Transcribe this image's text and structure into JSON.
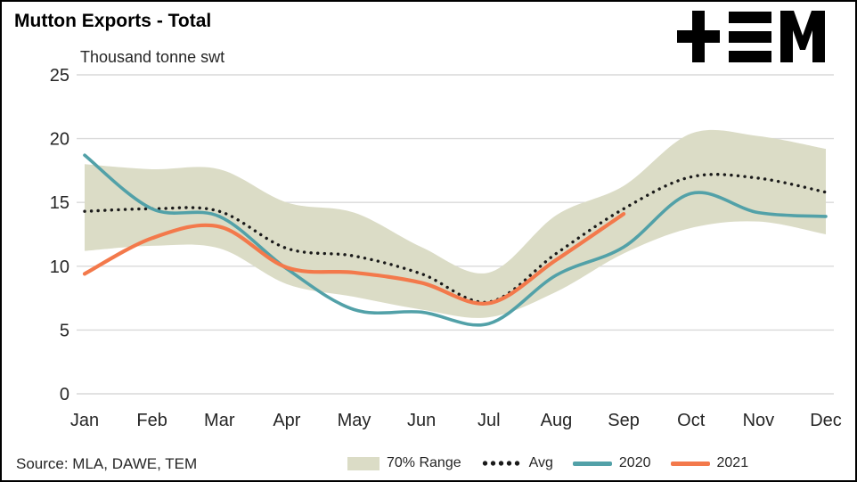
{
  "header": {
    "title": "Mutton Exports - Total",
    "units": "Thousand tonne swt",
    "logo": "TEM"
  },
  "footer": {
    "source": "Source: MLA, DAWE, TEM"
  },
  "chart_data": {
    "type": "line",
    "title": "Mutton Exports - Total",
    "ylabel": "Thousand tonne swt",
    "xlabel": "",
    "ylim": [
      0,
      25
    ],
    "yticks": [
      0,
      5,
      10,
      15,
      20,
      25
    ],
    "grid": true,
    "legend_position": "bottom",
    "categories": [
      "Jan",
      "Feb",
      "Mar",
      "Apr",
      "May",
      "Jun",
      "Jul",
      "Aug",
      "Sep",
      "Oct",
      "Nov",
      "Dec"
    ],
    "band": {
      "name": "70% Range",
      "color": "#dbdcc6",
      "upper": [
        18.0,
        17.6,
        17.6,
        15.0,
        14.2,
        11.5,
        9.5,
        14.0,
        16.3,
        20.4,
        20.2,
        19.2
      ],
      "lower": [
        11.2,
        11.6,
        11.4,
        8.6,
        7.6,
        6.6,
        6.0,
        8.0,
        11.0,
        13.0,
        13.5,
        12.5
      ]
    },
    "series": [
      {
        "name": "Avg",
        "style": "dotted",
        "color": "#1a1a1a",
        "values": [
          14.3,
          14.5,
          14.3,
          11.4,
          10.8,
          9.4,
          7.2,
          11.0,
          14.5,
          17.0,
          16.9,
          15.8
        ]
      },
      {
        "name": "2020",
        "style": "solid",
        "color": "#52a1a8",
        "values": [
          18.7,
          14.5,
          13.9,
          9.8,
          6.6,
          6.4,
          5.5,
          9.3,
          11.5,
          15.7,
          14.2,
          13.9
        ]
      },
      {
        "name": "2021",
        "style": "solid",
        "color": "#f3794b",
        "values": [
          9.4,
          12.2,
          13.1,
          9.9,
          9.5,
          8.7,
          7.1,
          10.5,
          14.1,
          null,
          null,
          null
        ]
      }
    ],
    "colors": {
      "grid": "#d9d9d9",
      "axis_text": "#262626"
    }
  }
}
